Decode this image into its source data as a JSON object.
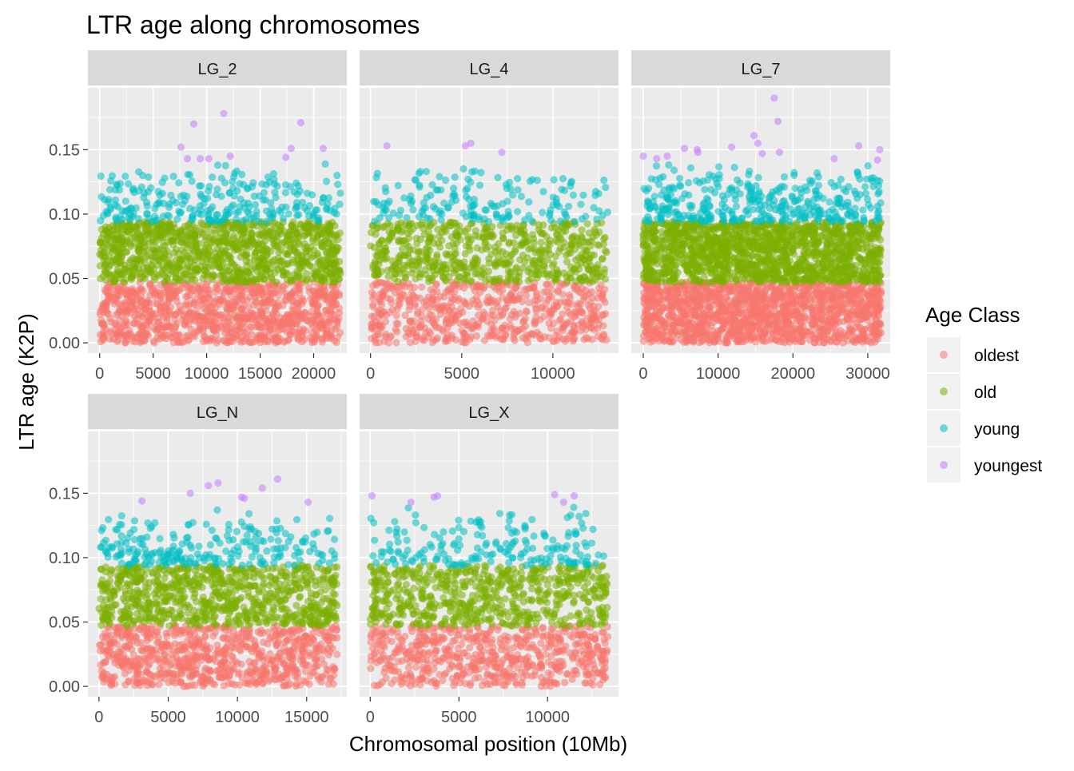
{
  "chart_data": {
    "type": "scatter",
    "title": "LTR age along chromosomes",
    "xlabel": "Chromosomal position (10Mb)",
    "ylabel": "LTR age (K2P)",
    "y_ticks": [
      "0.00",
      "0.05",
      "0.10",
      "0.15"
    ],
    "ylim": [
      -0.008,
      0.198
    ],
    "legend": {
      "title": "Age Class",
      "position": "right",
      "entries": [
        {
          "label": "oldest",
          "color": "#F8766D"
        },
        {
          "label": "old",
          "color": "#7CAE00"
        },
        {
          "label": "young",
          "color": "#00BFC4"
        },
        {
          "label": "youngest",
          "color": "#C77CFF"
        }
      ]
    },
    "class_ranges": {
      "oldest": [
        0.0,
        0.047
      ],
      "old": [
        0.047,
        0.094
      ],
      "young": [
        0.094,
        0.14
      ]
    },
    "panels": [
      {
        "name": "LG_2",
        "x_max": 22500,
        "xlim": [
          -1100,
          23100
        ],
        "x_ticks": [
          0,
          5000,
          10000,
          15000,
          20000
        ],
        "x_tick_labels": [
          "0",
          "5000",
          "10000",
          "15000",
          "20000"
        ],
        "young_count": 260,
        "youngest": [
          [
            7600,
            0.152
          ],
          [
            8200,
            0.143
          ],
          [
            8800,
            0.17
          ],
          [
            9400,
            0.143
          ],
          [
            10200,
            0.143
          ],
          [
            11600,
            0.178
          ],
          [
            12200,
            0.145
          ],
          [
            17400,
            0.144
          ],
          [
            17900,
            0.151
          ],
          [
            18800,
            0.171
          ],
          [
            20900,
            0.151
          ]
        ]
      },
      {
        "name": "LG_4",
        "x_max": 13000,
        "xlim": [
          -600,
          13600
        ],
        "x_ticks": [
          0,
          5000,
          10000
        ],
        "x_tick_labels": [
          "0",
          "5000",
          "10000"
        ],
        "young_count": 170,
        "youngest": [
          [
            900,
            0.153
          ],
          [
            5200,
            0.153
          ],
          [
            5500,
            0.155
          ],
          [
            7200,
            0.148
          ]
        ]
      },
      {
        "name": "LG_7",
        "x_max": 31800,
        "xlim": [
          -1600,
          33000
        ],
        "x_ticks": [
          0,
          10000,
          20000,
          30000
        ],
        "x_tick_labels": [
          "0",
          "10000",
          "20000",
          "30000"
        ],
        "young_count": 360,
        "youngest": [
          [
            0,
            0.145
          ],
          [
            1800,
            0.143
          ],
          [
            3200,
            0.145
          ],
          [
            5500,
            0.151
          ],
          [
            7200,
            0.15
          ],
          [
            7300,
            0.148
          ],
          [
            11800,
            0.152
          ],
          [
            14800,
            0.161
          ],
          [
            15300,
            0.155
          ],
          [
            15900,
            0.147
          ],
          [
            17500,
            0.19
          ],
          [
            18000,
            0.172
          ],
          [
            18200,
            0.148
          ],
          [
            25500,
            0.143
          ],
          [
            28800,
            0.153
          ],
          [
            31300,
            0.142
          ],
          [
            31600,
            0.15
          ]
        ]
      },
      {
        "name": "LG_N",
        "x_max": 17200,
        "xlim": [
          -800,
          17900
        ],
        "x_ticks": [
          0,
          5000,
          10000,
          15000
        ],
        "x_tick_labels": [
          "0",
          "5000",
          "10000",
          "15000"
        ],
        "young_count": 230,
        "youngest": [
          [
            3100,
            0.144
          ],
          [
            6600,
            0.15
          ],
          [
            7900,
            0.156
          ],
          [
            8600,
            0.158
          ],
          [
            10300,
            0.147
          ],
          [
            10500,
            0.146
          ],
          [
            11800,
            0.154
          ],
          [
            12900,
            0.161
          ],
          [
            15100,
            0.143
          ]
        ]
      },
      {
        "name": "LG_X",
        "x_max": 13400,
        "xlim": [
          -600,
          14000
        ],
        "x_ticks": [
          0,
          5000,
          10000
        ],
        "x_tick_labels": [
          "0",
          "5000",
          "10000"
        ],
        "young_count": 190,
        "youngest": [
          [
            100,
            0.148
          ],
          [
            2300,
            0.143
          ],
          [
            3600,
            0.147
          ],
          [
            3800,
            0.148
          ],
          [
            10400,
            0.149
          ],
          [
            10900,
            0.143
          ],
          [
            11500,
            0.148
          ]
        ]
      }
    ]
  }
}
